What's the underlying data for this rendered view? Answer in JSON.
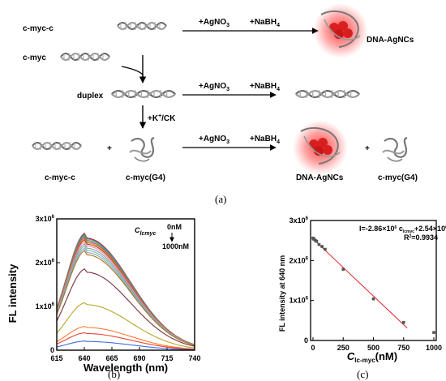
{
  "scheme": {
    "label_cmycc": "c-myc-c",
    "label_cmyc": "c-myc",
    "label_duplex": "duplex",
    "reagent_ag": "+AgNO",
    "reagent_ag_sub": "3",
    "reagent_nabh": "+NaBH",
    "reagent_nabh_sub": "4",
    "label_agncs_top": "DNA-AgNCs",
    "label_k": "+K",
    "label_k_sup": "+",
    "label_k_rest": "/CK",
    "plus": "+",
    "label_bottom_cmycc": "c-myc-c",
    "label_bottom_g4": "c-myc(G4)",
    "label_bottom_agncs": "DNA-AgNCs",
    "label_bottom_g4_right": "c-myc(G4)",
    "caption": "(a)"
  },
  "panel_b": {
    "caption": "(b)",
    "ylabel": "FL intensity",
    "xlabel": "Wavelength (nm)",
    "legend_symbol": "C",
    "legend_sub": "lcmyc",
    "legend_start": "0nM",
    "legend_end": "1000nM",
    "ytick_labels": [
      "0",
      "1x10",
      "2x10",
      "3x10"
    ],
    "ytick_exp": "6",
    "xtick_labels": [
      "615",
      "640",
      "665",
      "690",
      "715",
      "740"
    ]
  },
  "panel_c": {
    "caption": "(c)",
    "ylabel": "FL intensity at 640 nm",
    "xlabel_symbol": "C",
    "xlabel_sub": "lc-myc",
    "xlabel_unit": "(nM)",
    "equation_pre": "I=-2.86×10",
    "equation_exp": "6",
    "equation_mid": " c",
    "equation_sub": "lcmyc",
    "equation_post": "+2.54×10",
    "equation_exp2": "6",
    "r2": "R",
    "r2_sup": "2",
    "r2_val": "=0.9934",
    "ytick_labels": [
      "0",
      "1x10",
      "2x10",
      "3x10"
    ],
    "ytick_exp": "6",
    "xtick_labels": [
      "0",
      "250",
      "500",
      "750",
      "1000"
    ]
  },
  "chart_data": [
    {
      "type": "line",
      "xlabel": "Wavelength (nm)",
      "ylabel": "FL intensity",
      "xlim": [
        615,
        740
      ],
      "ylim": [
        0,
        3000000
      ],
      "legend": "top-right",
      "colors": [
        "#e41a1c",
        "#377eb8",
        "#4daf4a",
        "#984ea3",
        "#ff7f00",
        "#a65628",
        "#f781bf",
        "#999999",
        "#66c2a5",
        "#8da0cb",
        "#a6761d",
        "#7b2c3b",
        "#b8a526",
        "#ff7b2e",
        "#e8432f",
        "#3a6fd8"
      ],
      "series": [
        {
          "peak": 2560000
        },
        {
          "peak": 2540000
        },
        {
          "peak": 2510000
        },
        {
          "peak": 2480000
        },
        {
          "peak": 2450000
        },
        {
          "peak": 2420000
        },
        {
          "peak": 2380000
        },
        {
          "peak": 2330000
        },
        {
          "peak": 2280000
        },
        {
          "peak": 2230000
        },
        {
          "peak": 2180000
        },
        {
          "peak": 1780000
        },
        {
          "peak": 1040000
        },
        {
          "peak": 520000
        },
        {
          "peak": 380000
        },
        {
          "peak": 200000
        }
      ]
    },
    {
      "type": "scatter",
      "xlabel": "C lc-myc (nM)",
      "ylabel": "FL intensity at 640 nm",
      "xlim": [
        0,
        1000
      ],
      "ylim": [
        0,
        3000000
      ],
      "points": [
        {
          "x": 0,
          "y": 2560000
        },
        {
          "x": 5,
          "y": 2540000
        },
        {
          "x": 10,
          "y": 2530000
        },
        {
          "x": 20,
          "y": 2500000
        },
        {
          "x": 30,
          "y": 2480000
        },
        {
          "x": 50,
          "y": 2400000
        },
        {
          "x": 75,
          "y": 2350000
        },
        {
          "x": 100,
          "y": 2280000
        },
        {
          "x": 250,
          "y": 1780000
        },
        {
          "x": 500,
          "y": 1040000
        },
        {
          "x": 750,
          "y": 450000
        },
        {
          "x": 1000,
          "y": 200000
        }
      ],
      "fit": {
        "slope": -0.00286,
        "intercept": 2.54,
        "units": "1e6 per nM"
      }
    }
  ]
}
